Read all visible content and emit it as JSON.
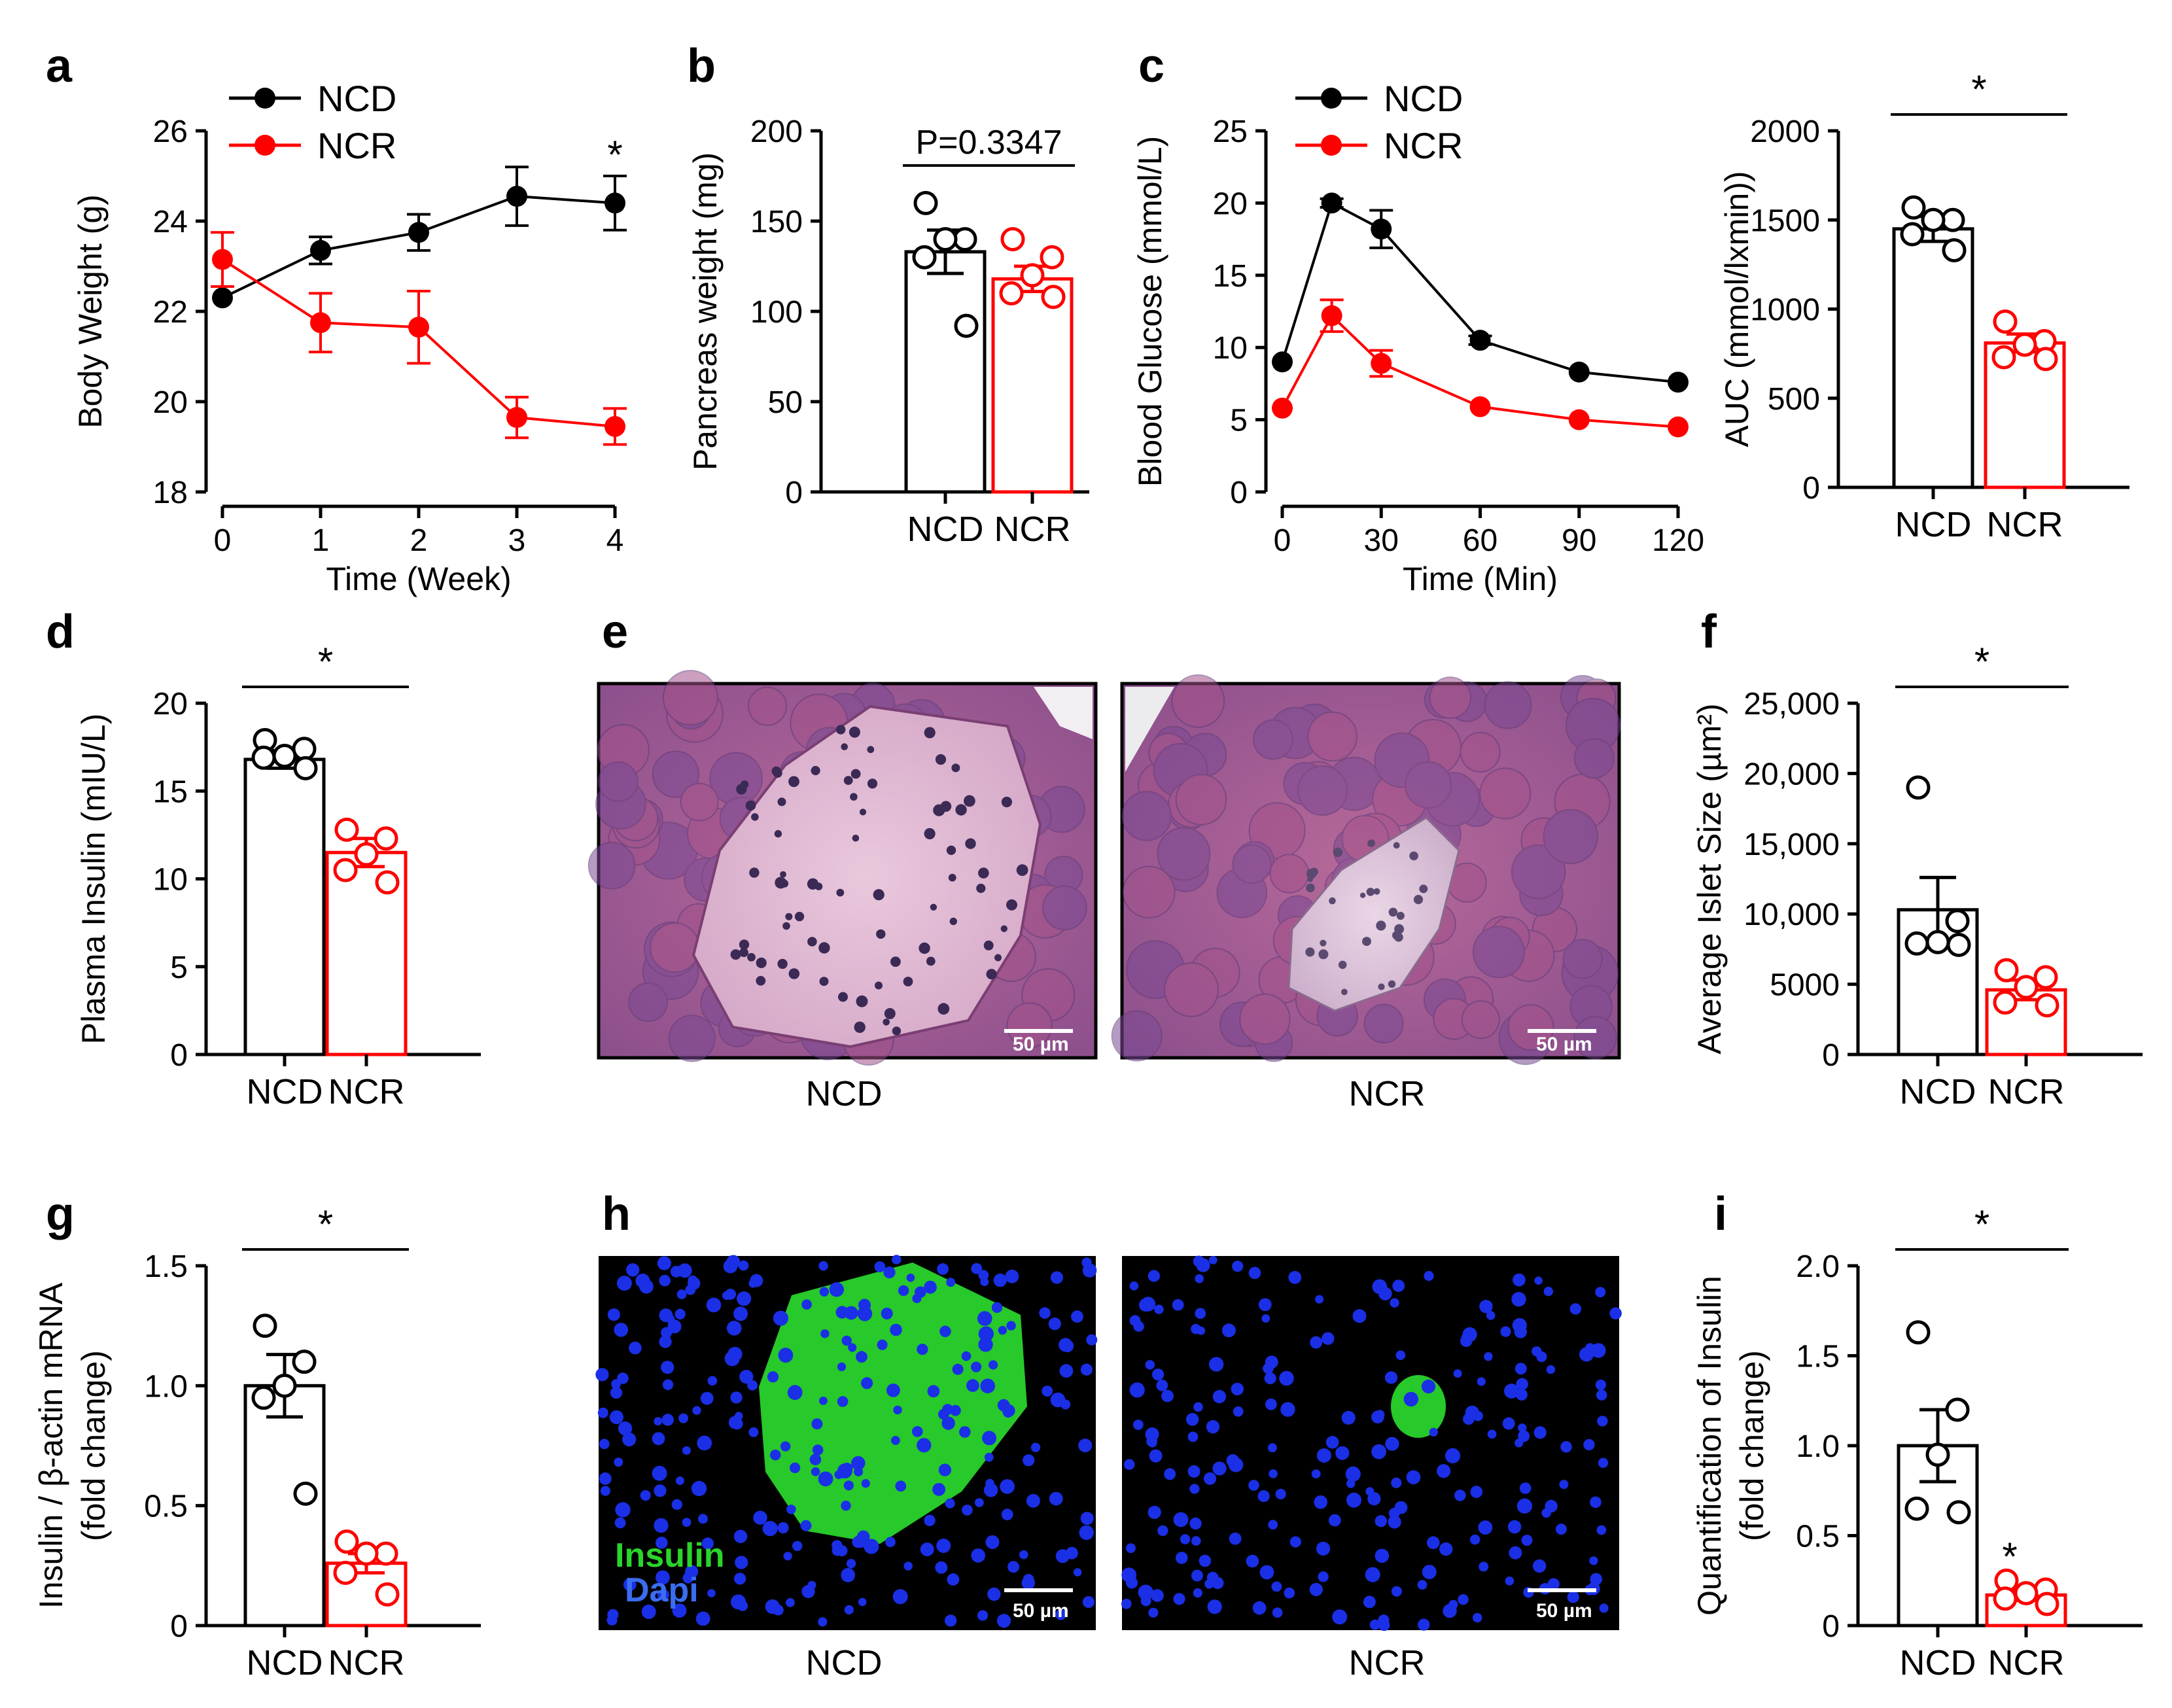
{
  "colors": {
    "ncd": "#000000",
    "ncr": "#ff0000",
    "insulin": "#2bd42b",
    "dapi": "#3a6df0"
  },
  "panels": {
    "a": "a",
    "b": "b",
    "c": "c",
    "d": "d",
    "e": "e",
    "f": "f",
    "g": "g",
    "h": "h",
    "i": "i"
  },
  "chart_data": [
    {
      "id": "a",
      "type": "line",
      "xlabel": "Time (Week)",
      "ylabel": "Body Weight  (g)",
      "x": [
        0,
        1,
        2,
        3,
        4
      ],
      "xticks": [
        "0",
        "1",
        "2",
        "3",
        "4"
      ],
      "ylim": [
        18,
        26
      ],
      "yticks": [
        "18",
        "20",
        "22",
        "24",
        "26"
      ],
      "series": [
        {
          "name": "NCD",
          "values": [
            22.3,
            23.35,
            23.75,
            24.55,
            24.4
          ],
          "err": [
            0.1,
            0.3,
            0.4,
            0.65,
            0.6
          ]
        },
        {
          "name": "NCR",
          "values": [
            23.15,
            21.75,
            21.65,
            19.65,
            19.45
          ],
          "err": [
            0.6,
            0.65,
            0.8,
            0.45,
            0.4
          ]
        }
      ],
      "legend": [
        "NCD",
        "NCR"
      ],
      "annotation": "*"
    },
    {
      "id": "b",
      "type": "bar",
      "ylabel": "Pancreas weight (mg)",
      "categories": [
        "NCD",
        "NCR"
      ],
      "ylim": [
        0,
        200
      ],
      "yticks": [
        "0",
        "50",
        "100",
        "150",
        "200"
      ],
      "values": [
        133,
        118
      ],
      "err": [
        12,
        7
      ],
      "points": [
        [
          160,
          140,
          140,
          130,
          92
        ],
        [
          140,
          130,
          120,
          110,
          108
        ]
      ],
      "annotation": "P=0.3347"
    },
    {
      "id": "c",
      "type": "line",
      "xlabel": "Time (Min)",
      "ylabel": "Blood Glucose (mmol/L)",
      "x": [
        0,
        15,
        30,
        60,
        90,
        120
      ],
      "xticks": [
        "0",
        "30",
        "60",
        "90",
        "120"
      ],
      "ylim": [
        0,
        25
      ],
      "yticks": [
        "0",
        "5",
        "10",
        "15",
        "20",
        "25"
      ],
      "series": [
        {
          "name": "NCD",
          "values": [
            9.0,
            20.0,
            18.2,
            10.5,
            8.3,
            7.6
          ],
          "err": [
            0.2,
            0.3,
            1.3,
            0.3,
            0.2,
            0.2
          ]
        },
        {
          "name": "NCR",
          "values": [
            5.8,
            12.2,
            8.9,
            5.9,
            5.0,
            4.5
          ],
          "err": [
            0.2,
            1.1,
            0.9,
            0.2,
            0.2,
            0.2
          ]
        }
      ],
      "legend": [
        "NCD",
        "NCR"
      ]
    },
    {
      "id": "c-auc",
      "type": "bar",
      "ylabel": "AUC (mmol/lxmin))",
      "categories": [
        "NCD",
        "NCR"
      ],
      "ylim": [
        0,
        2000
      ],
      "yticks": [
        "0",
        "500",
        "1000",
        "1500",
        "2000"
      ],
      "values": [
        1450,
        810
      ],
      "err": [
        70,
        50
      ],
      "points": [
        [
          1570,
          1500,
          1500,
          1420,
          1330
        ],
        [
          930,
          820,
          800,
          730,
          720
        ]
      ],
      "annotation": "*"
    },
    {
      "id": "d",
      "type": "bar",
      "ylabel": "Plasma Insulin (mIU/L)",
      "categories": [
        "NCD",
        "NCR"
      ],
      "ylim": [
        0,
        20
      ],
      "yticks": [
        "0",
        "5",
        "10",
        "15",
        "20"
      ],
      "values": [
        16.8,
        11.5
      ],
      "err": [
        0.5,
        0.8
      ],
      "points": [
        [
          17.9,
          17.4,
          17.0,
          16.9,
          16.3
        ],
        [
          12.8,
          12.3,
          11.4,
          10.5,
          9.8
        ]
      ],
      "annotation": "*"
    },
    {
      "id": "f",
      "type": "bar",
      "ylabel": "Average Islet Size (µm²)",
      "categories": [
        "NCD",
        "NCR"
      ],
      "ylim": [
        0,
        25000
      ],
      "yticks": [
        "0",
        "5000",
        "10,000",
        "15,000",
        "20,000",
        "25,000"
      ],
      "values": [
        10300,
        4600
      ],
      "err": [
        2300,
        700
      ],
      "points": [
        [
          19000,
          9500,
          8000,
          7900,
          7800
        ],
        [
          6000,
          5500,
          4800,
          3700,
          3500
        ]
      ],
      "annotation": "*"
    },
    {
      "id": "g",
      "type": "bar",
      "ylabel": "Insulin / β-actin mRNA",
      "ylabel2": "(fold change)",
      "categories": [
        "NCD",
        "NCR"
      ],
      "ylim": [
        0,
        1.5
      ],
      "yticks": [
        "0",
        "0.5",
        "1.0",
        "1.5"
      ],
      "values": [
        1.0,
        0.26
      ],
      "err": [
        0.13,
        0.04
      ],
      "points": [
        [
          1.25,
          1.1,
          1.0,
          0.95,
          0.55
        ],
        [
          0.35,
          0.3,
          0.3,
          0.22,
          0.13
        ]
      ],
      "annotation": "*"
    },
    {
      "id": "i",
      "type": "bar",
      "ylabel": "Quantification of Insulin",
      "ylabel2": "(fold change)",
      "categories": [
        "NCD",
        "NCR"
      ],
      "ylim": [
        0,
        2.0
      ],
      "yticks": [
        "0",
        "0.5",
        "1.0",
        "1.5",
        "2.0"
      ],
      "values": [
        1.0,
        0.17
      ],
      "err": [
        0.2,
        0.03
      ],
      "points": [
        [
          1.63,
          1.2,
          0.95,
          0.65,
          0.63
        ],
        [
          0.25,
          0.2,
          0.18,
          0.15,
          0.12
        ]
      ],
      "annotation": "*",
      "annotation2": "*"
    }
  ],
  "micrographs": {
    "e": {
      "left_caption": "NCD",
      "right_caption": "NCR",
      "scale_bar": "50 µm"
    },
    "h": {
      "left_caption": "NCD",
      "right_caption": "NCR",
      "scale_bar": "50 µm",
      "stain_1": "Insulin",
      "stain_2": "Dapi"
    }
  }
}
